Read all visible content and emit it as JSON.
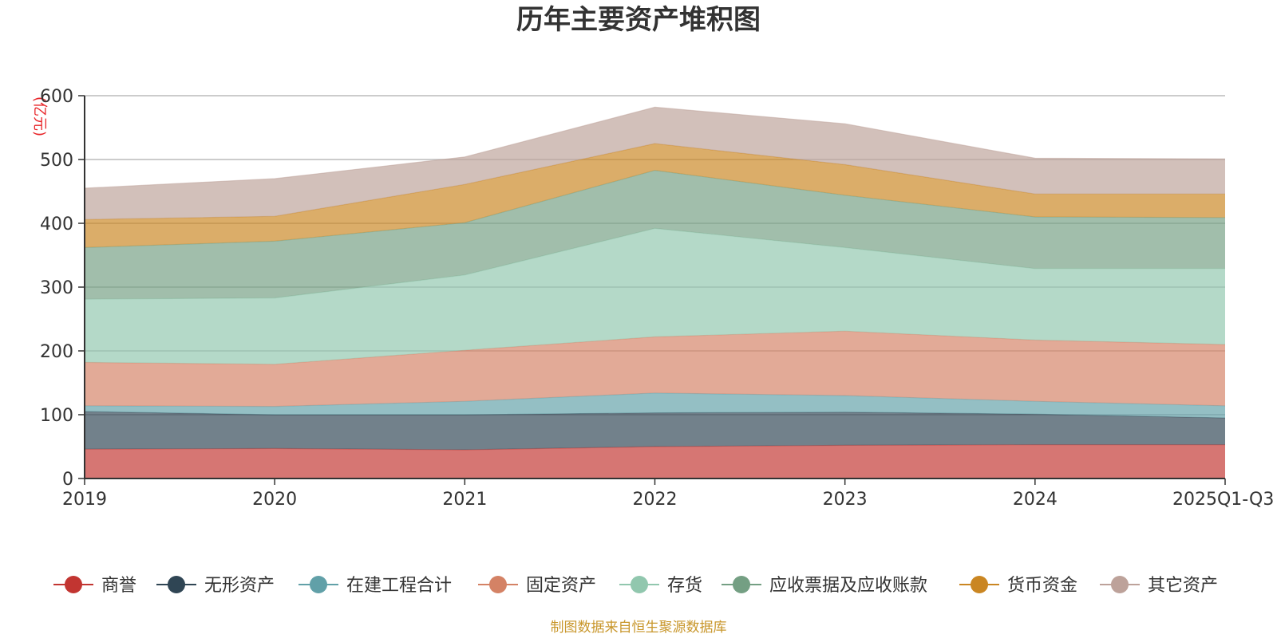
{
  "chart_data": {
    "type": "area",
    "stacked": true,
    "title": "历年主要资产堆积图",
    "ylabel": "(亿元)",
    "xlabel": "",
    "categories": [
      "2019",
      "2020",
      "2021",
      "2022",
      "2023",
      "2024",
      "2025Q1-Q3"
    ],
    "ylim": [
      0,
      600
    ],
    "yticks": [
      0,
      100,
      200,
      300,
      400,
      500,
      600
    ],
    "grid": true,
    "legend_position": "bottom",
    "series": [
      {
        "name": "商誉",
        "color": "#c23531",
        "values": [
          46,
          47,
          45,
          50,
          52,
          53,
          53
        ]
      },
      {
        "name": "无形资产",
        "color": "#2f4554",
        "values": [
          59,
          53,
          55,
          53,
          52,
          48,
          42
        ]
      },
      {
        "name": "在建工程合计",
        "color": "#61a0a8",
        "values": [
          9,
          13,
          21,
          31,
          26,
          20,
          19
        ]
      },
      {
        "name": "固定资产",
        "color": "#d48265",
        "values": [
          68,
          66,
          80,
          88,
          101,
          96,
          96
        ]
      },
      {
        "name": "存货",
        "color": "#91c7ae",
        "values": [
          99,
          104,
          118,
          170,
          131,
          112,
          119
        ]
      },
      {
        "name": "应收票据及应收账款",
        "color": "#749f83",
        "values": [
          81,
          89,
          82,
          91,
          82,
          81,
          80
        ]
      },
      {
        "name": "货币资金",
        "color": "#ca8622",
        "values": [
          44,
          39,
          60,
          42,
          48,
          36,
          37
        ]
      },
      {
        "name": "其它资产",
        "color": "#bda29a",
        "values": [
          49,
          59,
          43,
          57,
          64,
          56,
          55
        ]
      }
    ]
  },
  "footer": {
    "source": "制图数据来自恒生聚源数据库"
  }
}
